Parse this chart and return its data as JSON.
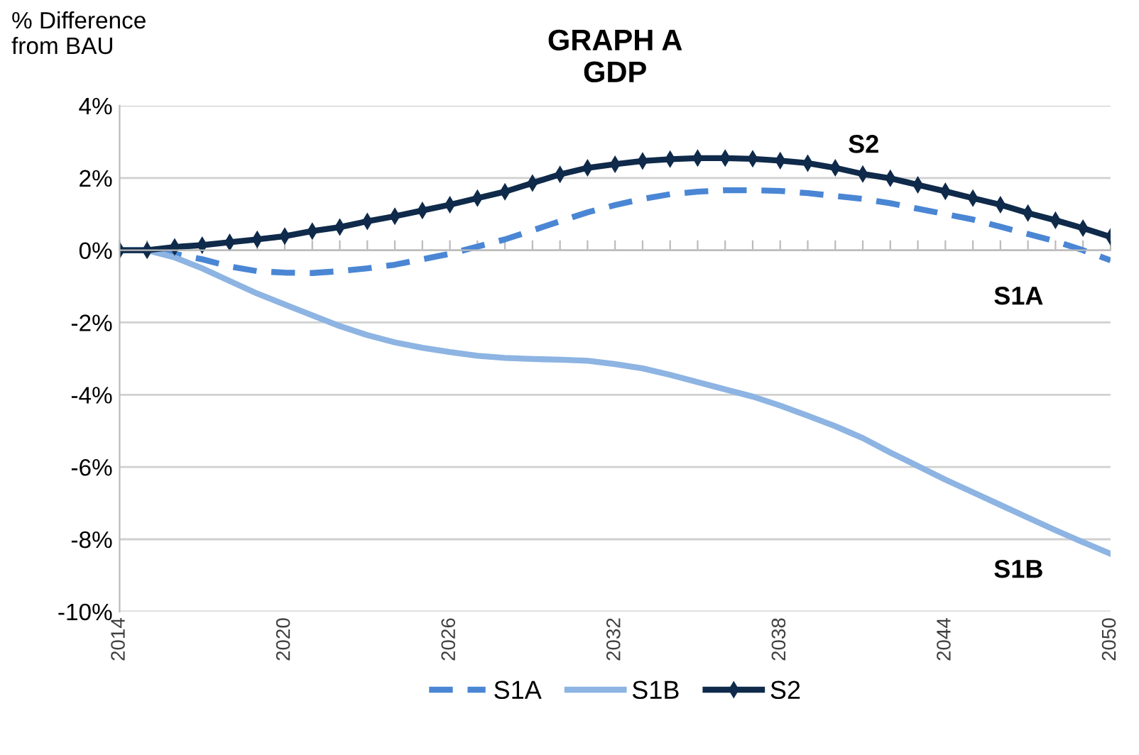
{
  "chart_data": {
    "type": "line",
    "title": "GRAPH A\nGDP",
    "ylabel": "% Difference\nfrom BAU",
    "categories": [
      "2014",
      null,
      null,
      null,
      null,
      null,
      "2020",
      null,
      null,
      null,
      null,
      null,
      "2026",
      null,
      null,
      null,
      null,
      null,
      "2032",
      null,
      null,
      null,
      null,
      null,
      "2038",
      null,
      null,
      null,
      null,
      null,
      "2044",
      null,
      null,
      null,
      null,
      null,
      "2050"
    ],
    "series": [
      {
        "name": "S1A",
        "color": "#4a86d4",
        "line_style": "dashed",
        "marker": "none",
        "values": [
          0,
          0,
          -0.1,
          -0.25,
          -0.45,
          -0.58,
          -0.62,
          -0.63,
          -0.58,
          -0.5,
          -0.4,
          -0.25,
          -0.1,
          0.1,
          0.3,
          0.55,
          0.8,
          1.05,
          1.25,
          1.42,
          1.55,
          1.62,
          1.66,
          1.66,
          1.64,
          1.58,
          1.5,
          1.42,
          1.3,
          1.15,
          1.0,
          0.85,
          0.65,
          0.45,
          0.25,
          0.0,
          -0.28
        ]
      },
      {
        "name": "S1B",
        "color": "#8db4e2",
        "line_style": "solid",
        "marker": "none",
        "values": [
          0,
          0,
          -0.2,
          -0.5,
          -0.85,
          -1.2,
          -1.5,
          -1.8,
          -2.1,
          -2.35,
          -2.55,
          -2.7,
          -2.82,
          -2.92,
          -2.98,
          -3.01,
          -3.03,
          -3.06,
          -3.15,
          -3.27,
          -3.45,
          -3.65,
          -3.85,
          -4.05,
          -4.3,
          -4.58,
          -4.87,
          -5.2,
          -5.6,
          -5.97,
          -6.35,
          -6.7,
          -7.05,
          -7.4,
          -7.75,
          -8.08,
          -8.4
        ]
      },
      {
        "name": "S2",
        "color": "#0f2a4a",
        "line_style": "solid",
        "marker": "diamond",
        "values": [
          0,
          0,
          0.09,
          0.14,
          0.22,
          0.3,
          0.39,
          0.53,
          0.64,
          0.8,
          0.94,
          1.1,
          1.26,
          1.44,
          1.62,
          1.86,
          2.1,
          2.28,
          2.38,
          2.47,
          2.52,
          2.55,
          2.55,
          2.53,
          2.48,
          2.41,
          2.28,
          2.11,
          1.99,
          1.81,
          1.63,
          1.44,
          1.26,
          1.03,
          0.83,
          0.61,
          0.37
        ]
      }
    ],
    "annotations": [
      "S2",
      "S1A",
      "S1B"
    ],
    "ylim": [
      -10,
      4
    ],
    "yticks": [
      {
        "value": -10,
        "label": "-10%"
      },
      {
        "value": -8,
        "label": "-8%"
      },
      {
        "value": -6,
        "label": "-6%"
      },
      {
        "value": -4,
        "label": "-4%"
      },
      {
        "value": -2,
        "label": "-2%"
      },
      {
        "value": 0,
        "label": "0%"
      },
      {
        "value": 2,
        "label": "2%"
      },
      {
        "value": 4,
        "label": "4%"
      }
    ],
    "grid": "y",
    "legend": "bottom"
  }
}
